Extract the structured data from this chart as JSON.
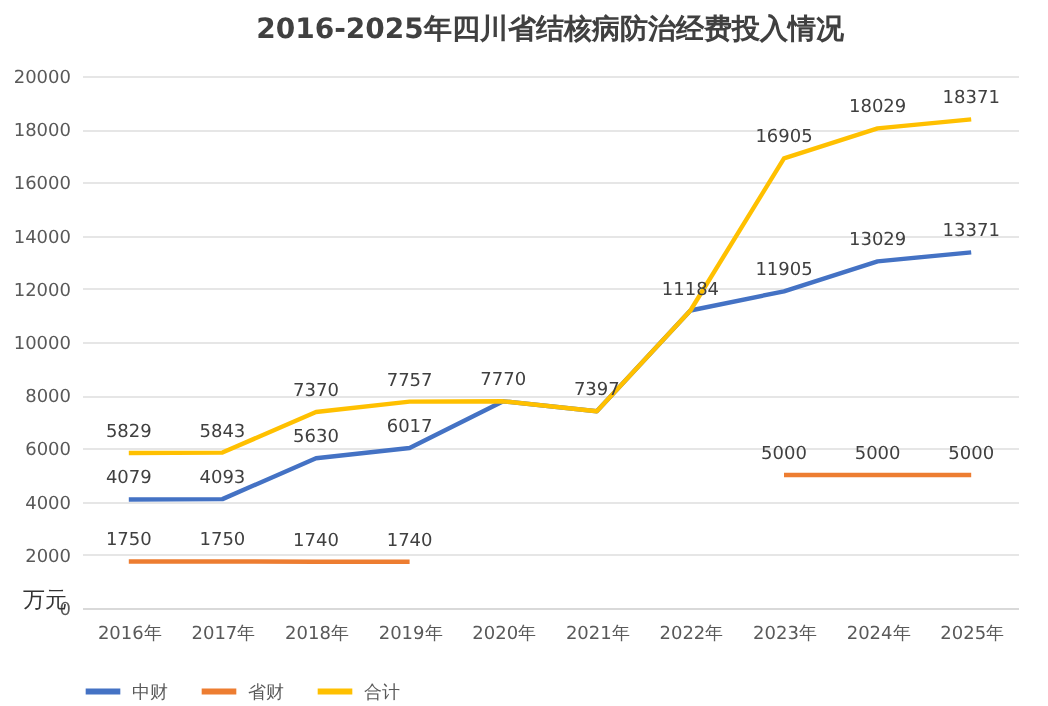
{
  "chart_data": {
    "type": "line",
    "title": "2016-2025年四川省结核病防治经费投入情况",
    "ylabel": "万元",
    "categories": [
      "2016年",
      "2017年",
      "2018年",
      "2019年",
      "2020年",
      "2021年",
      "2022年",
      "2023年",
      "2024年",
      "2025年"
    ],
    "series": [
      {
        "name": "中财",
        "color": "#4472c4",
        "values": [
          4079,
          4093,
          5630,
          6017,
          7770,
          7397,
          11184,
          11905,
          13029,
          13371
        ]
      },
      {
        "name": "省财",
        "color": "#ed7d31",
        "values": [
          1750,
          1750,
          1740,
          1740,
          null,
          null,
          null,
          5000,
          5000,
          5000
        ]
      },
      {
        "name": "合计",
        "color": "#ffc000",
        "values": [
          5829,
          5843,
          7370,
          7757,
          7770,
          7397,
          11184,
          16905,
          18029,
          18371
        ],
        "value_labels": [
          "5829",
          "5843",
          "7370",
          "7757",
          null,
          null,
          null,
          "16905",
          "18029",
          "18371"
        ]
      }
    ],
    "ylim": [
      0,
      20000
    ],
    "yticks": [
      0,
      2000,
      4000,
      6000,
      8000,
      10000,
      12000,
      14000,
      16000,
      18000,
      20000
    ],
    "grid": "y",
    "legend": "bottom",
    "data_labels": true,
    "marker": "none",
    "line_style": "solid"
  }
}
